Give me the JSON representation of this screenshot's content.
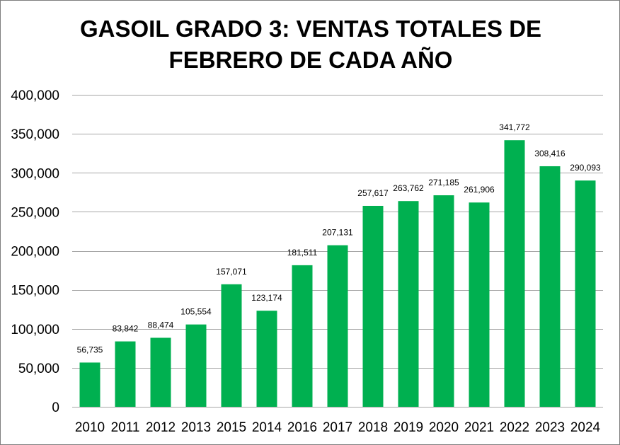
{
  "chart_data": {
    "type": "bar",
    "title": [
      "GASOIL GRADO 3: VENTAS TOTALES DE",
      "FEBRERO DE CADA AÑO"
    ],
    "categories": [
      "2010",
      "2011",
      "2012",
      "2013",
      "2015",
      "2014",
      "2016",
      "2017",
      "2018",
      "2019",
      "2020",
      "2021",
      "2022",
      "2023",
      "2024"
    ],
    "values": [
      56735,
      83842,
      88474,
      105554,
      157071,
      123174,
      181511,
      207131,
      257617,
      263762,
      271185,
      261906,
      341772,
      308416,
      290093
    ],
    "data_labels": [
      "56,735",
      "83,842",
      "88,474",
      "105,554",
      "157,071",
      "123,174",
      "181,511",
      "207,131",
      "257,617",
      "263,762",
      "271,185",
      "261,906",
      "341,772",
      "308,416",
      "290,093"
    ],
    "ylim": [
      0,
      400000
    ],
    "yticks": [
      0,
      50000,
      100000,
      150000,
      200000,
      250000,
      300000,
      350000,
      400000
    ],
    "ytick_labels": [
      "0",
      "50,000",
      "100,000",
      "150,000",
      "200,000",
      "250,000",
      "300,000",
      "350,000",
      "400,000"
    ],
    "xlabel": "",
    "ylabel": "",
    "grid": true,
    "legend": "none",
    "bar_color": "#00b050",
    "grid_color": "#a6a6a6"
  }
}
